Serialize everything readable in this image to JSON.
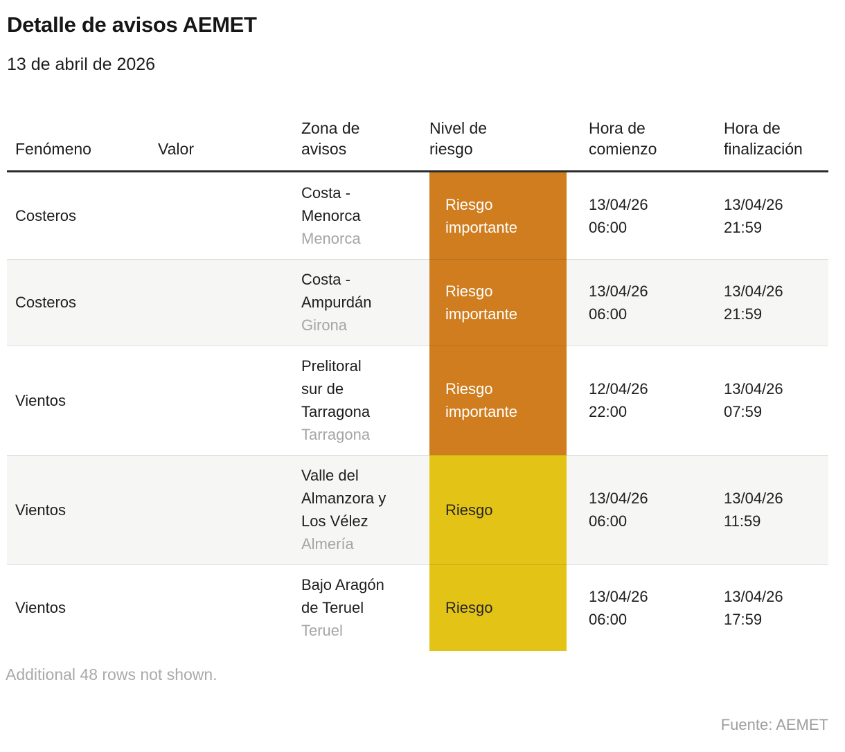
{
  "header": {
    "title": "Detalle de avisos AEMET",
    "subtitle": "13 de abril de 2026"
  },
  "colors": {
    "riesgo_importante_bg": "#cf7d1e",
    "riesgo_importante_text": "#ffffff",
    "riesgo_bg": "#e3c416",
    "riesgo_text": "#262626",
    "alt_row_bg": "#f6f6f5",
    "muted_text": "#a5a5a5"
  },
  "chart_data": {
    "type": "table",
    "title": "Detalle de avisos AEMET",
    "subtitle": "13 de abril de 2026",
    "columns": [
      "Fenómeno",
      "Valor",
      "Zona de\navisos",
      "Nivel de\nriesgo",
      "Hora de\ncomienzo",
      "Hora de\nfinalización"
    ],
    "rows": [
      {
        "fenomeno": "Costeros",
        "valor": "",
        "zona": "Costa -\nMenorca",
        "provincia": "Menorca",
        "nivel": "Riesgo\nimportante",
        "nivel_tipo": "importante",
        "comienzo_fecha": "13/04/26",
        "comienzo_hora": "06:00",
        "fin_fecha": "13/04/26",
        "fin_hora": "21:59"
      },
      {
        "fenomeno": "Costeros",
        "valor": "",
        "zona": "Costa -\nAmpurdán",
        "provincia": "Girona",
        "nivel": "Riesgo\nimportante",
        "nivel_tipo": "importante",
        "comienzo_fecha": "13/04/26",
        "comienzo_hora": "06:00",
        "fin_fecha": "13/04/26",
        "fin_hora": "21:59"
      },
      {
        "fenomeno": "Vientos",
        "valor": "",
        "zona": "Prelitoral\nsur de\nTarragona",
        "provincia": "Tarragona",
        "nivel": "Riesgo\nimportante",
        "nivel_tipo": "importante",
        "comienzo_fecha": "12/04/26",
        "comienzo_hora": "22:00",
        "fin_fecha": "13/04/26",
        "fin_hora": "07:59"
      },
      {
        "fenomeno": "Vientos",
        "valor": "",
        "zona": "Valle del\nAlmanzora y\nLos Vélez",
        "provincia": "Almería",
        "nivel": "Riesgo",
        "nivel_tipo": "riesgo",
        "comienzo_fecha": "13/04/26",
        "comienzo_hora": "06:00",
        "fin_fecha": "13/04/26",
        "fin_hora": "11:59"
      },
      {
        "fenomeno": "Vientos",
        "valor": "",
        "zona": "Bajo Aragón\nde Teruel",
        "provincia": "Teruel",
        "nivel": "Riesgo",
        "nivel_tipo": "riesgo",
        "comienzo_fecha": "13/04/26",
        "comienzo_hora": "06:00",
        "fin_fecha": "13/04/26",
        "fin_hora": "17:59"
      }
    ],
    "note": "Additional 48 rows not shown.",
    "source": "Fuente: AEMET"
  }
}
